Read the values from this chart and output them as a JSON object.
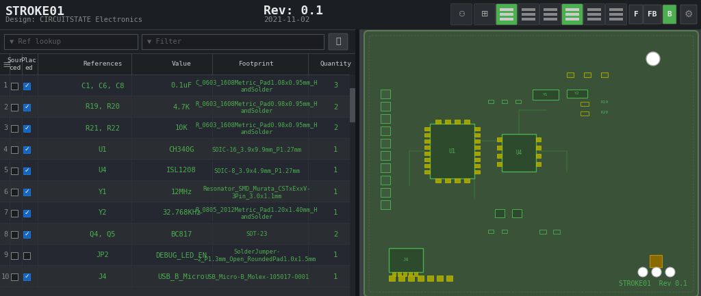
{
  "bg_color": "#1e2124",
  "panel_color": "#2a2d31",
  "header_color": "#23262a",
  "row_alt_color": "#252830",
  "row_color": "#2a2d31",
  "border_color": "#3a3d42",
  "green_text": "#4caf50",
  "white_text": "#d0d0d0",
  "gray_text": "#888888",
  "title": "STROKE01",
  "subtitle": "Design: CIRCUITSTATE Electronics",
  "rev": "Rev: 0.1",
  "date": "2021-11-02",
  "rows": [
    [
      "1",
      "C1, C6, C8",
      "0.1uF",
      "C_0603_1608Metric_Pad1.08x0.95mm_H\nandSolder",
      "3"
    ],
    [
      "2",
      "R19, R20",
      "4.7K",
      "R_0603_1608Metric_Pad0.98x0.95mm_H\nandSolder",
      "2"
    ],
    [
      "3",
      "R21, R22",
      "10K",
      "R_0603_1608Metric_Pad0.98x0.95mm_H\nandSolder",
      "2"
    ],
    [
      "4",
      "U1",
      "CH340G",
      "SOIC-16_3.9x9.9mm_P1.27mm",
      "1"
    ],
    [
      "5",
      "U4",
      "ISL1208",
      "SOIC-8_3.9x4.9mm_P1.27mm",
      "1"
    ],
    [
      "6",
      "Y1",
      "12MHz",
      "Resonator_SMD_Murata_CSTxExxV-\n3Pin_3.0x1.1mm",
      "1"
    ],
    [
      "7",
      "Y2",
      "32.768KHz",
      "R_0805_2012Metric_Pad1.20x1.40mm_H\nandSolder",
      "1"
    ],
    [
      "8",
      "Q4, Q5",
      "BC817",
      "SOT-23",
      "2"
    ],
    [
      "9",
      "JP2",
      "DEBUG_LED_EN",
      "SolderJumper-\n2_P1.3mm_Open_RoundedPad1.0x1.5mm",
      "1"
    ],
    [
      "10",
      "J4",
      "USB_B_Micro",
      "USB_Micro-B_Molex-105017-0001",
      "1"
    ]
  ],
  "placed": [
    true,
    true,
    true,
    true,
    true,
    true,
    true,
    true,
    false,
    true
  ]
}
